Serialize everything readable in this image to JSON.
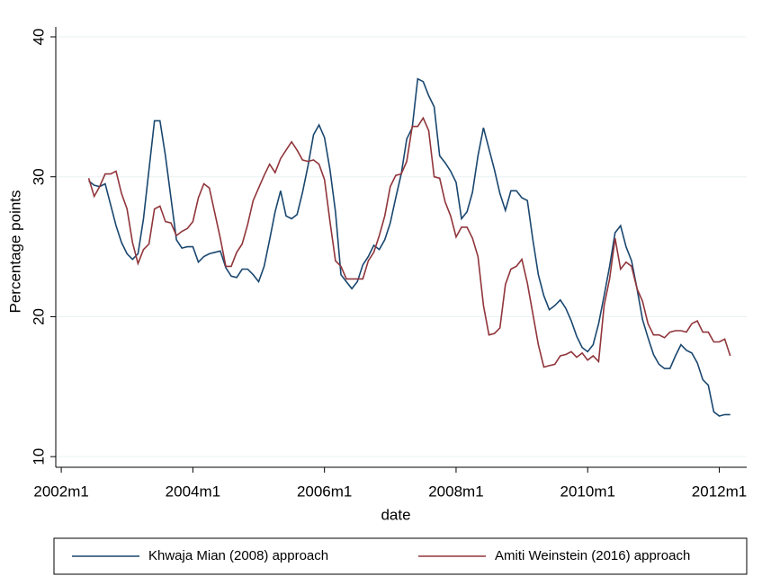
{
  "chart_data": {
    "type": "line",
    "ylabel": "Percentage points",
    "xlabel": "date",
    "x": [
      509,
      510,
      511,
      512,
      513,
      514,
      515,
      516,
      517,
      518,
      519,
      520,
      521,
      522,
      523,
      524,
      525,
      526,
      527,
      528,
      529,
      530,
      531,
      532,
      533,
      534,
      535,
      536,
      537,
      538,
      539,
      540,
      541,
      542,
      543,
      544,
      545,
      546,
      547,
      548,
      549,
      550,
      551,
      552,
      553,
      554,
      555,
      556,
      557,
      558,
      559,
      560,
      561,
      562,
      563,
      564,
      565,
      566,
      567,
      568,
      569,
      570,
      571,
      572,
      573,
      574,
      575,
      576,
      577,
      578,
      579,
      580,
      581,
      582,
      583,
      584,
      585,
      586,
      587,
      588,
      589,
      590,
      591,
      592,
      593,
      594,
      595,
      596,
      597,
      598,
      599,
      600,
      601,
      602,
      603,
      604,
      605,
      606,
      607,
      608,
      609,
      610,
      611,
      612,
      613,
      614,
      615,
      616,
      617,
      618,
      619,
      620,
      621,
      622,
      623,
      624,
      625,
      626
    ],
    "series": [
      {
        "name": "Khwaja Mian (2008) approach",
        "color": "#1a476f",
        "values": [
          29.7,
          29.4,
          29.3,
          29.5,
          28,
          26.5,
          25.3,
          24.5,
          24.1,
          24.5,
          27,
          30.5,
          34,
          34,
          31.5,
          28.5,
          25.5,
          24.9,
          25,
          25,
          23.9,
          24.3,
          24.5,
          24.6,
          24.7,
          23.5,
          22.9,
          22.8,
          23.4,
          23.4,
          23,
          22.5,
          23.6,
          25.5,
          27.5,
          29,
          27.2,
          27,
          27.3,
          28.9,
          30.8,
          33,
          33.7,
          32.8,
          30.5,
          27.5,
          23,
          22.5,
          22,
          22.5,
          23.7,
          24.3,
          25.1,
          24.8,
          25.5,
          26.7,
          28.5,
          30.2,
          32.7,
          33.5,
          37,
          36.8,
          35.8,
          35,
          31.5,
          31,
          30.4,
          29.6,
          27,
          27.5,
          28.9,
          31.5,
          33.5,
          32,
          30.5,
          28.8,
          27.6,
          29,
          29,
          28.5,
          28.3,
          25.5,
          23,
          21.5,
          20.5,
          20.8,
          21.2,
          20.6,
          19.7,
          18.6,
          17.8,
          17.5,
          18,
          19.5,
          21.5,
          23.6,
          26,
          26.5,
          25,
          24,
          22,
          19.8,
          18.5,
          17.3,
          16.6,
          16.3,
          16.3,
          17.2,
          18,
          17.6,
          17.4,
          16.7,
          15.5,
          15.1,
          13.2,
          12.9,
          13,
          13
        ]
      },
      {
        "name": "Amiti Weinstein (2016) approach",
        "color": "#90353b",
        "values": [
          29.9,
          28.6,
          29.3,
          30.2,
          30.2,
          30.4,
          28.8,
          27.7,
          25.3,
          23.8,
          24.8,
          25.2,
          27.7,
          27.9,
          26.8,
          26.7,
          25.8,
          26.1,
          26.3,
          26.8,
          28.5,
          29.5,
          29.2,
          27.4,
          25.6,
          23.6,
          23.6,
          24.6,
          25.2,
          26.6,
          28.3,
          29.2,
          30.1,
          30.9,
          30.3,
          31.3,
          31.9,
          32.5,
          31.9,
          31.2,
          31.1,
          31.2,
          30.9,
          29.8,
          26.8,
          24,
          23.6,
          22.7,
          22.7,
          22.7,
          22.7,
          24,
          24.6,
          25.8,
          27.2,
          29.3,
          30.1,
          30.2,
          31.1,
          33.6,
          33.6,
          34.2,
          33.3,
          30,
          29.9,
          28.2,
          27.2,
          25.7,
          26.4,
          26.4,
          25.6,
          24.3,
          20.8,
          18.7,
          18.8,
          19.2,
          22.3,
          23.4,
          23.6,
          24.1,
          22.4,
          20.2,
          18,
          16.4,
          16.5,
          16.6,
          17.2,
          17.3,
          17.5,
          17.1,
          17.4,
          16.9,
          17.2,
          16.8,
          20.8,
          22.7,
          25.6,
          23.4,
          23.9,
          23.6,
          22,
          21.1,
          19.5,
          18.7,
          18.7,
          18.5,
          18.9,
          19,
          19,
          18.9,
          19.5,
          19.7,
          18.9,
          18.9,
          18.2,
          18.2,
          18.4,
          17.2
        ]
      }
    ],
    "xlim": [
      503,
      629
    ],
    "xticks": [
      {
        "value": 504,
        "label": "2002m1"
      },
      {
        "value": 528,
        "label": "2004m1"
      },
      {
        "value": 552,
        "label": "2006m1"
      },
      {
        "value": 576,
        "label": "2008m1"
      },
      {
        "value": 600,
        "label": "2010m1"
      },
      {
        "value": 624,
        "label": "2012m1"
      }
    ],
    "ylim": [
      9.24,
      40
    ],
    "yticks": [
      10,
      20,
      30,
      40
    ],
    "grid": true,
    "legend": "bottom"
  }
}
